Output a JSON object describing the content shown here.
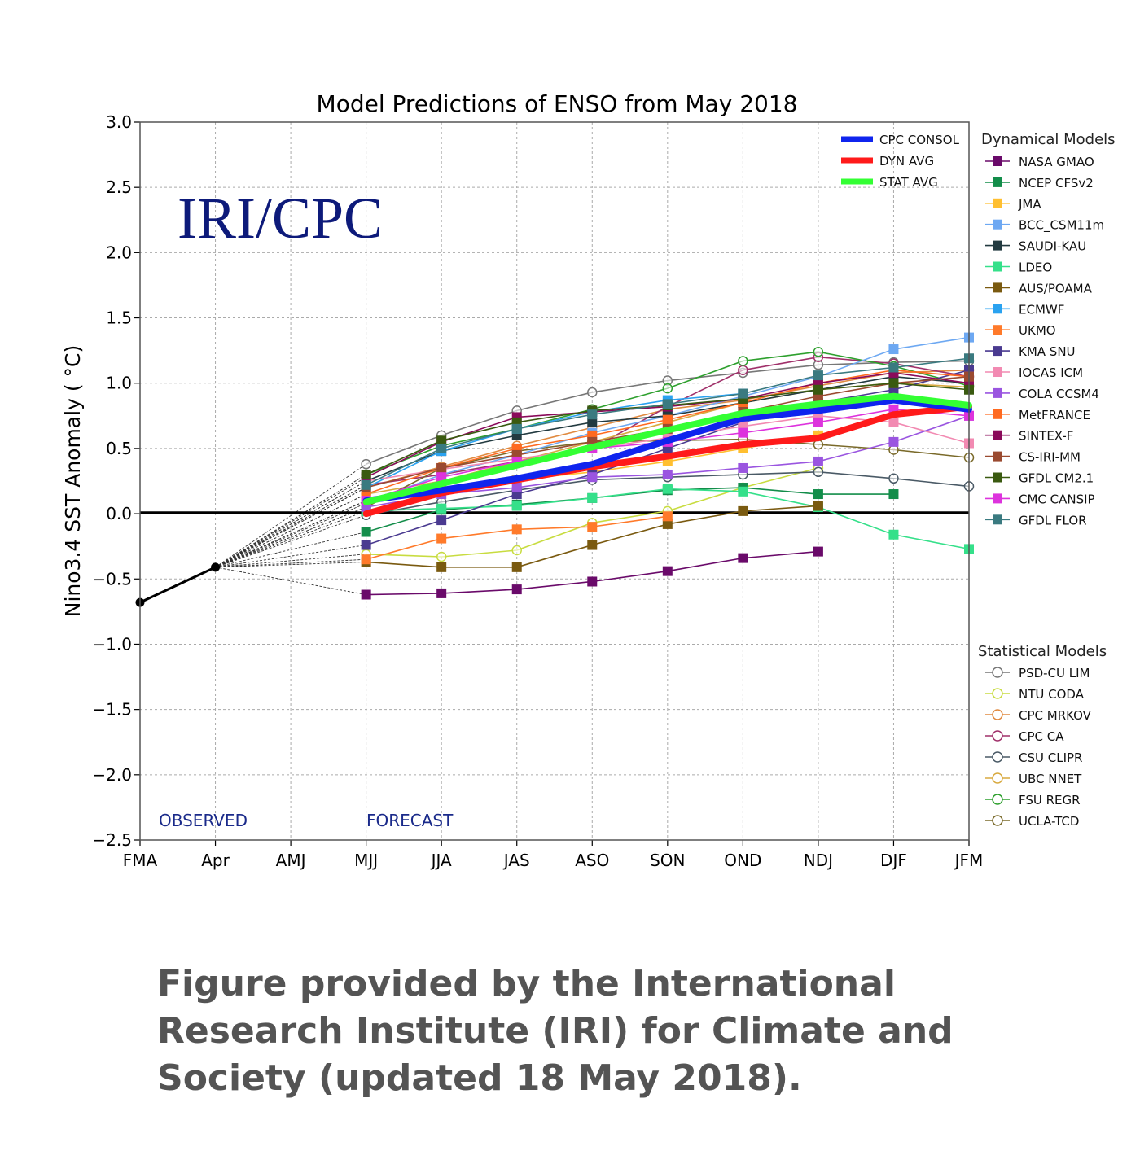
{
  "caption": "Figure provided by the International Research Institute (IRI) for Climate and Society (updated 18 May 2018).",
  "chart_data": {
    "type": "line",
    "title": "Model Predictions of ENSO from May 2018",
    "ylabel": "Nino3.4 SST Anomaly ( °C)",
    "xlabel": "",
    "watermark": "IRI/CPC",
    "observed_label": "OBSERVED",
    "forecast_label": "FORECAST",
    "x_categories": [
      "FMA",
      "Apr",
      "AMJ",
      "MJJ",
      "JJA",
      "JAS",
      "ASO",
      "SON",
      "OND",
      "NDJ",
      "DJF",
      "JFM"
    ],
    "ylim": [
      -2.5,
      3.0
    ],
    "yticks": [
      "3.0",
      "2.5",
      "2.0",
      "1.5",
      "1.0",
      "0.5",
      "0.0",
      "−0.5",
      "−1.0",
      "−1.5",
      "−2.0",
      "−2.5"
    ],
    "ytick_values": [
      3.0,
      2.5,
      2.0,
      1.5,
      1.0,
      0.5,
      0.0,
      -0.5,
      -1.0,
      -1.5,
      -2.0,
      -2.5
    ],
    "grid": true,
    "zero_line": true,
    "observed": {
      "x_index": [
        0,
        1
      ],
      "values": [
        -0.68,
        -0.41
      ],
      "color": "#000000"
    },
    "consensus_legend": [
      {
        "name": "CPC CONSOL",
        "color": "#0f24ee",
        "values": [
          0.1,
          0.18,
          0.27,
          0.38,
          0.56,
          0.73,
          0.79,
          0.87,
          0.8
        ]
      },
      {
        "name": "DYN AVG",
        "color": "#ff1a1a",
        "values": [
          0.0,
          0.16,
          0.26,
          0.36,
          0.44,
          0.53,
          0.58,
          0.76,
          0.82
        ]
      },
      {
        "name": "STAT AVG",
        "color": "#33ff33",
        "values": [
          0.09,
          0.23,
          0.37,
          0.51,
          0.64,
          0.77,
          0.84,
          0.9,
          0.83
        ]
      }
    ],
    "dynamical_title": "Dynamical Models",
    "dynamical_models": [
      {
        "name": "NASA GMAO",
        "color": "#6a0a6a",
        "start": 3,
        "values": [
          -0.62,
          -0.61,
          -0.58,
          -0.52,
          -0.44,
          -0.34,
          -0.29
        ]
      },
      {
        "name": "NCEP CFSv2",
        "color": "#138d4a",
        "start": 3,
        "values": [
          -0.14,
          0.03,
          0.07,
          0.12,
          0.18,
          0.2,
          0.15,
          0.15
        ]
      },
      {
        "name": "JMA",
        "color": "#ffbf30",
        "start": 3,
        "values": [
          0.1,
          0.18,
          0.26,
          0.32,
          0.4,
          0.5,
          0.6
        ]
      },
      {
        "name": "BCC_CSM11m",
        "color": "#6da8f2",
        "start": 3,
        "values": [
          0.08,
          0.3,
          0.45,
          0.62,
          0.75,
          0.9,
          1.05,
          1.26,
          1.35
        ]
      },
      {
        "name": "SAUDI-KAU",
        "color": "#223a40",
        "start": 3,
        "values": [
          0.25,
          0.48,
          0.6,
          0.7,
          0.75,
          0.85,
          0.95,
          1.05,
          1.0
        ]
      },
      {
        "name": "LDEO",
        "color": "#35e08a",
        "start": 3,
        "values": [
          0.02,
          0.04,
          0.06,
          0.12,
          0.19,
          0.17,
          0.05,
          -0.16,
          -0.27
        ]
      },
      {
        "name": "AUS/POAMA",
        "color": "#7a5a10",
        "start": 3,
        "values": [
          -0.37,
          -0.41,
          -0.41,
          -0.24,
          -0.08,
          0.02,
          0.06
        ]
      },
      {
        "name": "ECMWF",
        "color": "#2aa2f0",
        "start": 3,
        "values": [
          0.2,
          0.48,
          0.65,
          0.78,
          0.87,
          0.92
        ]
      },
      {
        "name": "UKMO",
        "color": "#ff7a2a",
        "start": 3,
        "values": [
          -0.35,
          -0.19,
          -0.12,
          -0.1,
          -0.02
        ]
      },
      {
        "name": "KMA SNU",
        "color": "#4a3a90",
        "start": 3,
        "values": [
          -0.24,
          -0.05,
          0.15,
          0.3,
          0.5,
          0.7,
          0.85,
          0.95,
          1.1
        ]
      },
      {
        "name": "IOCAS ICM",
        "color": "#f28ab2",
        "start": 3,
        "values": [
          0.25,
          0.34,
          0.42,
          0.5,
          0.58,
          0.67,
          0.75,
          0.7,
          0.54
        ]
      },
      {
        "name": "COLA CCSM4",
        "color": "#9a55e0",
        "start": 3,
        "values": [
          0.05,
          0.15,
          0.2,
          0.28,
          0.3,
          0.35,
          0.4,
          0.55,
          0.75
        ]
      },
      {
        "name": "MetFRANCE",
        "color": "#ff6a20",
        "start": 3,
        "values": [
          0.15,
          0.35,
          0.5,
          0.6,
          0.72,
          0.85,
          1.0,
          1.1,
          1.05
        ]
      },
      {
        "name": "SINTEX-F",
        "color": "#8a0a5a",
        "start": 3,
        "values": [
          0.28,
          0.55,
          0.74,
          0.78,
          0.82,
          0.88,
          1.0,
          1.08,
          1.0
        ]
      },
      {
        "name": "CS-IRI-MM",
        "color": "#9a4a30",
        "start": 3,
        "values": [
          0.2,
          0.35,
          0.45,
          0.55,
          0.65,
          0.78,
          0.9,
          1.0,
          1.05
        ]
      },
      {
        "name": "GFDL CM2.1",
        "color": "#3a5a10",
        "start": 3,
        "values": [
          0.3,
          0.56,
          0.7,
          0.79,
          0.83,
          0.88,
          0.95,
          1.0,
          0.95
        ]
      },
      {
        "name": "CMC CANSIP",
        "color": "#dd33dd",
        "start": 3,
        "values": [
          0.1,
          0.28,
          0.4,
          0.5,
          0.55,
          0.62,
          0.7,
          0.8,
          0.75
        ]
      },
      {
        "name": "GFDL FLOR",
        "color": "#3a7a80",
        "start": 3,
        "values": [
          0.22,
          0.5,
          0.65,
          0.76,
          0.84,
          0.92,
          1.06,
          1.12,
          1.19
        ]
      }
    ],
    "statistical_title": "Statistical Models",
    "statistical_models": [
      {
        "name": "PSD-CU LIM",
        "color": "#777777",
        "start": 3,
        "values": [
          0.38,
          0.6,
          0.79,
          0.93,
          1.02,
          1.08,
          1.14,
          1.16,
          1.17
        ]
      },
      {
        "name": "NTU CODA",
        "color": "#c8dc40",
        "start": 3,
        "values": [
          -0.31,
          -0.33,
          -0.28,
          -0.07,
          0.02,
          0.2,
          0.35
        ]
      },
      {
        "name": "CPC MRKOV",
        "color": "#e08a40",
        "start": 3,
        "values": [
          0.2,
          0.36,
          0.52,
          0.66,
          0.8,
          0.87,
          0.98,
          1.08,
          1.1
        ]
      },
      {
        "name": "CPC CA",
        "color": "#a0306a",
        "start": 3,
        "values": [
          0.22,
          0.3,
          0.4,
          0.5,
          0.82,
          1.1,
          1.2,
          1.15,
          1.05
        ]
      },
      {
        "name": "CSU CLIPR",
        "color": "#4a5a66",
        "start": 3,
        "values": [
          -0.01,
          0.09,
          0.18,
          0.26,
          0.28,
          0.3,
          0.32,
          0.27,
          0.21
        ]
      },
      {
        "name": "UBC NNET",
        "color": "#d8aa40",
        "start": 3,
        "values": [
          0.15,
          0.25,
          0.4,
          0.55,
          0.7,
          0.85,
          0.95,
          1.0,
          0.97
        ]
      },
      {
        "name": "FSU REGR",
        "color": "#2ea02e",
        "start": 3,
        "values": [
          0.3,
          0.52,
          0.65,
          0.8,
          0.96,
          1.17,
          1.24,
          1.13,
          0.98
        ]
      },
      {
        "name": "UCLA-TCD",
        "color": "#7a6a2a",
        "start": 3,
        "values": [
          0.05,
          0.35,
          0.48,
          0.55,
          0.56,
          0.57,
          0.53,
          0.49,
          0.43
        ]
      }
    ]
  }
}
